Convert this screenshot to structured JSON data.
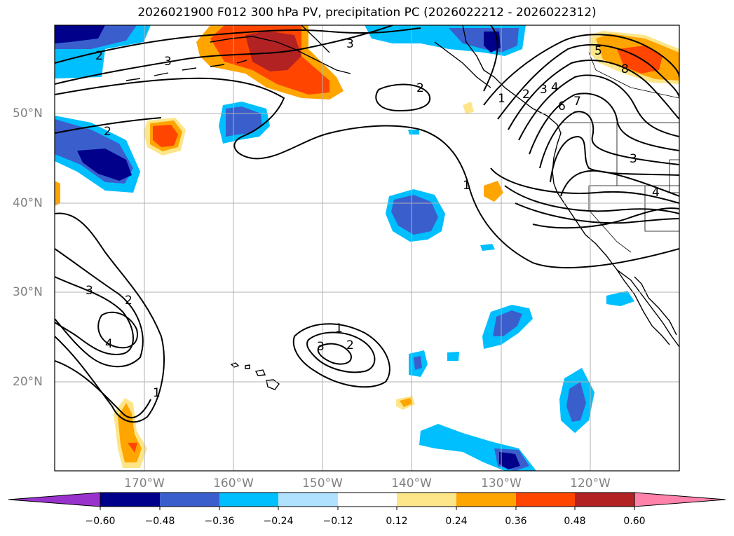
{
  "title": "2026021900 F012 300 hPa PV, precipitation PC (2026022212 - 2026022312)",
  "map": {
    "lat_labels": [
      "50°N",
      "40°N",
      "30°N",
      "20°N"
    ],
    "lon_labels": [
      "170°W",
      "160°W",
      "150°W",
      "140°W",
      "130°W",
      "120°W"
    ],
    "pv_contour_labels": [
      "2",
      "3",
      "3",
      "2",
      "2",
      "3",
      "2",
      "4",
      "1",
      "1",
      "3",
      "2",
      "1",
      "1",
      "2",
      "3",
      "4",
      "6",
      "7",
      "5",
      "8",
      "3",
      "4"
    ]
  },
  "colorbar": {
    "ticks": [
      "−0.60",
      "−0.48",
      "−0.36",
      "−0.24",
      "−0.12",
      "0.12",
      "0.24",
      "0.36",
      "0.48",
      "0.60"
    ],
    "colors": [
      "#9932cc",
      "#00008b",
      "#3a5fcd",
      "#00bfff",
      "#b0e2ff",
      "#ffffff",
      "#fde68a",
      "#ffa500",
      "#ff4500",
      "#b22222",
      "#ff82ab"
    ]
  }
}
